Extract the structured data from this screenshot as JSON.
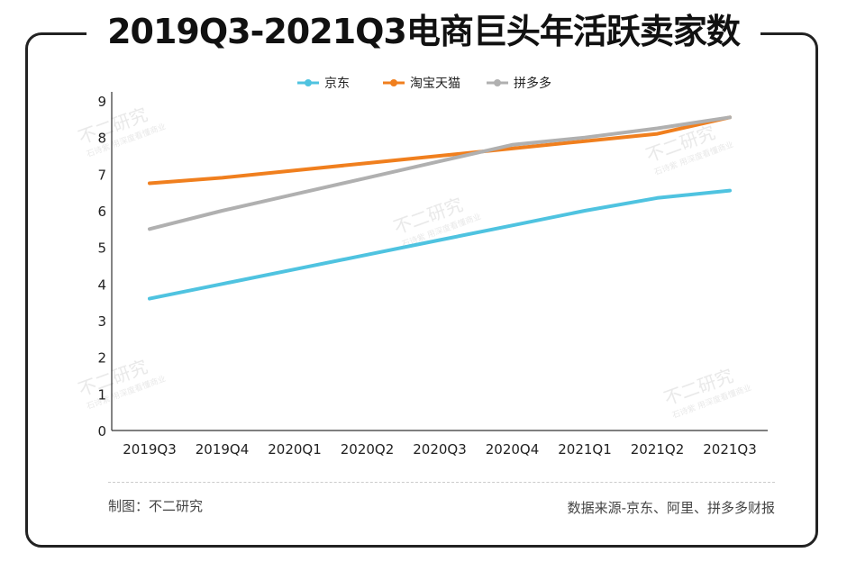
{
  "title": "2019Q3-2021Q3电商巨头年活跃卖家数",
  "footer": {
    "left": "制图：不二研究",
    "right": "数据来源-京东、阿里、拼多多财报"
  },
  "watermark": {
    "main": "不二研究",
    "sub": "石诗紫 用深度看懂商业"
  },
  "chart_data": {
    "type": "line",
    "categories": [
      "2019Q3",
      "2019Q4",
      "2020Q1",
      "2020Q2",
      "2020Q3",
      "2020Q4",
      "2021Q1",
      "2021Q2",
      "2021Q3"
    ],
    "ylim": [
      0,
      9
    ],
    "yticks": [
      "0",
      "1",
      "2",
      "3",
      "4",
      "5",
      "6",
      "7",
      "8",
      "9"
    ],
    "legend_position": "top-center",
    "grid": false,
    "series": [
      {
        "name": "京东",
        "color": "#4FC3E0",
        "values": [
          3.6,
          4.0,
          4.4,
          4.8,
          5.2,
          5.6,
          6.0,
          6.35,
          6.55
        ]
      },
      {
        "name": "淘宝天猫",
        "color": "#F07F1E",
        "values": [
          6.75,
          6.9,
          7.1,
          7.3,
          7.5,
          7.7,
          7.9,
          8.1,
          8.55
        ]
      },
      {
        "name": "拼多多",
        "color": "#B0B0B0",
        "values": [
          5.5,
          6.0,
          6.45,
          6.9,
          7.35,
          7.8,
          8.0,
          8.25,
          8.55
        ]
      }
    ]
  }
}
